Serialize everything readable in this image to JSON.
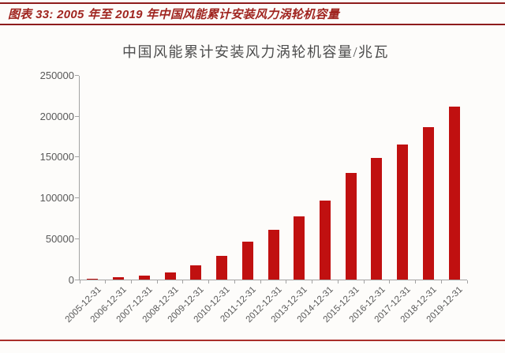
{
  "figure_header": {
    "label": "图表 33: 2005 年至 2019 年中国风能累计安装风力涡轮机容量"
  },
  "chart_data": {
    "type": "bar",
    "title": "中国风能累计安装风力涡轮机容量/兆瓦",
    "xlabel": "",
    "ylabel": "",
    "unit": "兆瓦 (MW)",
    "categories": [
      "2005-12-31",
      "2006-12-31",
      "2007-12-31",
      "2008-12-31",
      "2009-12-31",
      "2010-12-31",
      "2011-12-31",
      "2012-12-31",
      "2013-12-31",
      "2014-12-31",
      "2015-12-31",
      "2016-12-31",
      "2017-12-31",
      "2018-12-31",
      "2019-12-31"
    ],
    "values": [
      1300,
      2600,
      5000,
      9000,
      17000,
      29000,
      46000,
      61000,
      77000,
      97000,
      131000,
      149000,
      165000,
      187000,
      212000
    ],
    "ylim": [
      0,
      250000
    ],
    "yticks": [
      0,
      50000,
      100000,
      150000,
      200000,
      250000
    ],
    "grid": false,
    "legend_position": "none",
    "x_label_rotation_deg": -45
  },
  "colors": {
    "background": "#fdfcfa",
    "header_text": "#a02520",
    "header_rule": "#8e1c1c",
    "bottom_rule": "#aa2f2b",
    "bar": "#c01010",
    "axis": "#a3a3a3",
    "tick_label": "#595959",
    "title_text": "#4d4d4d"
  }
}
